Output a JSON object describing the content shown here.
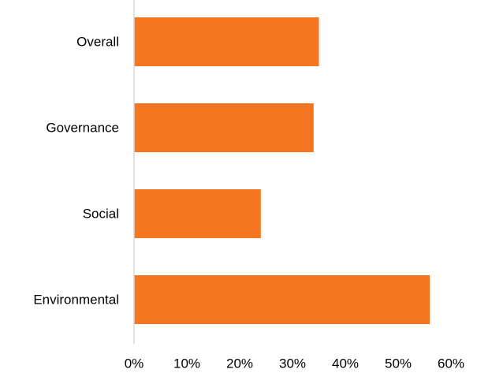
{
  "chart_data": {
    "type": "bar",
    "orientation": "horizontal",
    "categories": [
      "Overall",
      "Governance",
      "Social",
      "Environmental"
    ],
    "values": [
      35,
      34,
      24,
      56
    ],
    "xlim": [
      0,
      60
    ],
    "x_ticks": [
      "0%",
      "10%",
      "20%",
      "30%",
      "40%",
      "50%",
      "60%"
    ],
    "grid": false,
    "legend": "none",
    "bar_color": "#F47621",
    "axis_color": "#D9D9D9"
  }
}
